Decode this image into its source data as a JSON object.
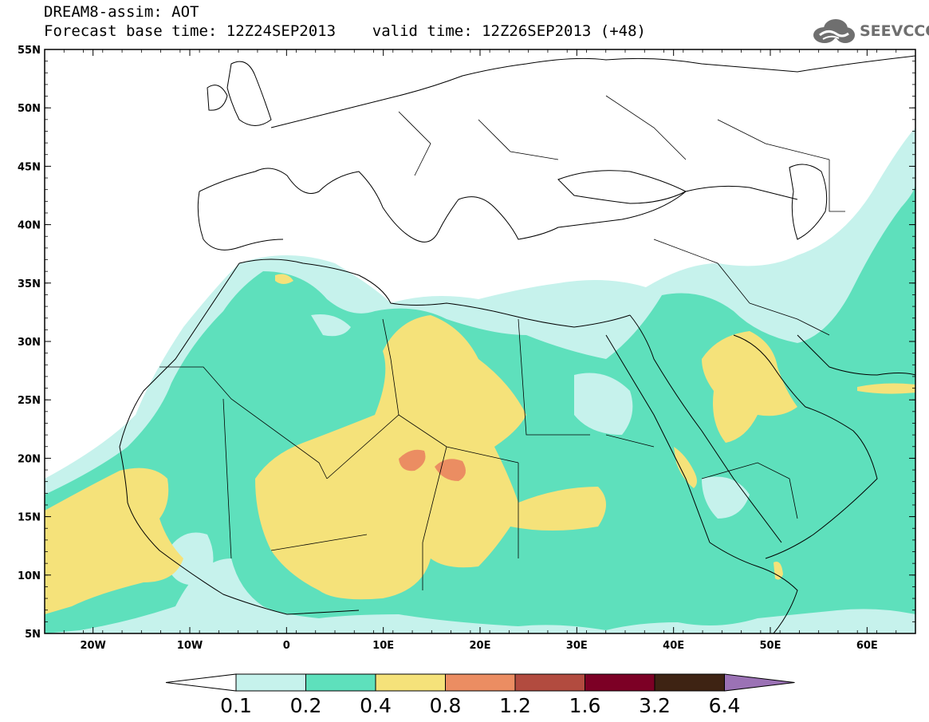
{
  "title": {
    "line1": "DREAM8-assim: AOT",
    "line2": "Forecast base time: 12Z24SEP2013    valid time: 12Z26SEP2013 (+48)"
  },
  "logo": {
    "text": "SEEVCCC",
    "icon": "cloud-icon"
  },
  "map": {
    "lon_range": [
      -25,
      65
    ],
    "lat_range": [
      5,
      55
    ],
    "x_ticks": [
      {
        "value": -20,
        "label": "20W"
      },
      {
        "value": -10,
        "label": "10W"
      },
      {
        "value": 0,
        "label": "0"
      },
      {
        "value": 10,
        "label": "10E"
      },
      {
        "value": 20,
        "label": "20E"
      },
      {
        "value": 30,
        "label": "30E"
      },
      {
        "value": 40,
        "label": "40E"
      },
      {
        "value": 50,
        "label": "50E"
      },
      {
        "value": 60,
        "label": "60E"
      }
    ],
    "y_ticks": [
      {
        "value": 5,
        "label": "5N"
      },
      {
        "value": 10,
        "label": "10N"
      },
      {
        "value": 15,
        "label": "15N"
      },
      {
        "value": 20,
        "label": "20N"
      },
      {
        "value": 25,
        "label": "25N"
      },
      {
        "value": 30,
        "label": "30N"
      },
      {
        "value": 35,
        "label": "35N"
      },
      {
        "value": 40,
        "label": "40N"
      },
      {
        "value": 45,
        "label": "45N"
      },
      {
        "value": 50,
        "label": "50N"
      },
      {
        "value": 55,
        "label": "55N"
      }
    ]
  },
  "colorbar": {
    "colors": [
      "#c6f2ec",
      "#5ee0bc",
      "#f5e27a",
      "#eb8d62",
      "#b24b3f",
      "#7c0025",
      "#3e2313",
      "#9b72b5"
    ],
    "labels": [
      "0.1",
      "0.2",
      "0.4",
      "0.8",
      "1.2",
      "1.6",
      "3.2",
      "6.4"
    ]
  }
}
